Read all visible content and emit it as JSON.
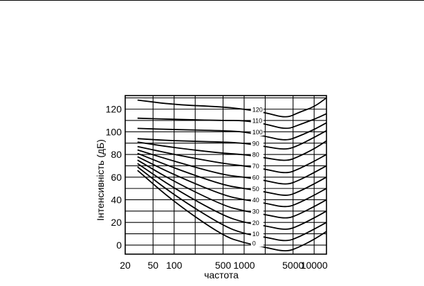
{
  "chart_data": {
    "type": "line",
    "title": "",
    "xlabel": "частота",
    "ylabel": "Інтенсивність (дБ)",
    "x_scale": "log",
    "xlim": [
      20,
      15000
    ],
    "ylim": [
      -8,
      132
    ],
    "grid": true,
    "x_ticks": [
      {
        "value": 20,
        "label": "20"
      },
      {
        "value": 50,
        "label": "50"
      },
      {
        "value": 100,
        "label": "100"
      },
      {
        "value": 500,
        "label": "500"
      },
      {
        "value": 1000,
        "label": "1000"
      },
      {
        "value": 5000,
        "label": "5000"
      },
      {
        "value": 10000,
        "label": "10000"
      }
    ],
    "y_ticks": [
      {
        "value": 0,
        "label": "0"
      },
      {
        "value": 20,
        "label": "20"
      },
      {
        "value": 40,
        "label": "40"
      },
      {
        "value": 60,
        "label": "60"
      },
      {
        "value": 80,
        "label": "80"
      },
      {
        "value": 100,
        "label": "100"
      },
      {
        "value": 120,
        "label": "120"
      }
    ],
    "series": [
      {
        "name": "120",
        "points": [
          [
            30,
            128
          ],
          [
            100,
            124
          ],
          [
            500,
            122
          ],
          [
            1000,
            120
          ],
          [
            2000,
            117
          ],
          [
            4000,
            112
          ],
          [
            6000,
            117
          ],
          [
            10000,
            122
          ],
          [
            15000,
            130
          ]
        ]
      },
      {
        "name": "110",
        "points": [
          [
            30,
            112
          ],
          [
            100,
            111
          ],
          [
            500,
            110
          ],
          [
            1000,
            110
          ],
          [
            2000,
            107
          ],
          [
            4000,
            102
          ],
          [
            6000,
            106
          ],
          [
            10000,
            111
          ],
          [
            15000,
            116
          ]
        ]
      },
      {
        "name": "100",
        "points": [
          [
            30,
            103
          ],
          [
            100,
            102
          ],
          [
            500,
            101
          ],
          [
            1000,
            100
          ],
          [
            2000,
            96
          ],
          [
            4000,
            92
          ],
          [
            6000,
            96
          ],
          [
            10000,
            102
          ],
          [
            15000,
            108
          ]
        ]
      },
      {
        "name": "90",
        "points": [
          [
            30,
            94
          ],
          [
            100,
            92
          ],
          [
            500,
            91
          ],
          [
            1000,
            90
          ],
          [
            2000,
            87
          ],
          [
            4000,
            84
          ],
          [
            6000,
            88
          ],
          [
            10000,
            95
          ],
          [
            15000,
            101
          ]
        ]
      },
      {
        "name": "80",
        "points": [
          [
            30,
            91
          ],
          [
            100,
            86
          ],
          [
            500,
            81
          ],
          [
            1000,
            80
          ],
          [
            2000,
            77
          ],
          [
            4000,
            74
          ],
          [
            6000,
            78
          ],
          [
            10000,
            85
          ],
          [
            15000,
            92
          ]
        ]
      },
      {
        "name": "70",
        "points": [
          [
            30,
            87
          ],
          [
            100,
            80
          ],
          [
            500,
            72
          ],
          [
            1000,
            70
          ],
          [
            2000,
            67
          ],
          [
            4000,
            63
          ],
          [
            6000,
            67
          ],
          [
            10000,
            74
          ],
          [
            15000,
            80
          ]
        ]
      },
      {
        "name": "60",
        "points": [
          [
            30,
            84
          ],
          [
            100,
            74
          ],
          [
            500,
            62
          ],
          [
            1000,
            60
          ],
          [
            2000,
            57
          ],
          [
            4000,
            53
          ],
          [
            6000,
            57
          ],
          [
            10000,
            64
          ],
          [
            15000,
            70
          ]
        ]
      },
      {
        "name": "50",
        "points": [
          [
            30,
            81
          ],
          [
            100,
            68
          ],
          [
            500,
            53
          ],
          [
            1000,
            50
          ],
          [
            2000,
            47
          ],
          [
            4000,
            43
          ],
          [
            6000,
            47
          ],
          [
            10000,
            54
          ],
          [
            15000,
            60
          ]
        ]
      },
      {
        "name": "40",
        "points": [
          [
            30,
            78
          ],
          [
            100,
            62
          ],
          [
            500,
            44
          ],
          [
            1000,
            40
          ],
          [
            2000,
            37
          ],
          [
            4000,
            33
          ],
          [
            6000,
            37
          ],
          [
            10000,
            44
          ],
          [
            15000,
            50
          ]
        ]
      },
      {
        "name": "30",
        "points": [
          [
            30,
            75
          ],
          [
            100,
            56
          ],
          [
            500,
            35
          ],
          [
            1000,
            30
          ],
          [
            2000,
            27
          ],
          [
            4000,
            23
          ],
          [
            6000,
            27
          ],
          [
            10000,
            34
          ],
          [
            15000,
            40
          ]
        ]
      },
      {
        "name": "20",
        "points": [
          [
            30,
            72
          ],
          [
            100,
            50
          ],
          [
            500,
            26
          ],
          [
            1000,
            20
          ],
          [
            2000,
            17
          ],
          [
            4000,
            13
          ],
          [
            6000,
            17
          ],
          [
            10000,
            24
          ],
          [
            15000,
            30
          ]
        ]
      },
      {
        "name": "10",
        "points": [
          [
            30,
            69
          ],
          [
            100,
            44
          ],
          [
            500,
            17
          ],
          [
            1000,
            10
          ],
          [
            2000,
            7
          ],
          [
            4000,
            3
          ],
          [
            6000,
            7
          ],
          [
            10000,
            14
          ],
          [
            15000,
            20
          ]
        ]
      },
      {
        "name": "0",
        "points": [
          [
            30,
            66
          ],
          [
            100,
            38
          ],
          [
            500,
            8
          ],
          [
            1000,
            2
          ],
          [
            2000,
            -2
          ],
          [
            4000,
            -6
          ],
          [
            6000,
            -2
          ],
          [
            10000,
            5
          ],
          [
            15000,
            12
          ]
        ]
      }
    ]
  }
}
